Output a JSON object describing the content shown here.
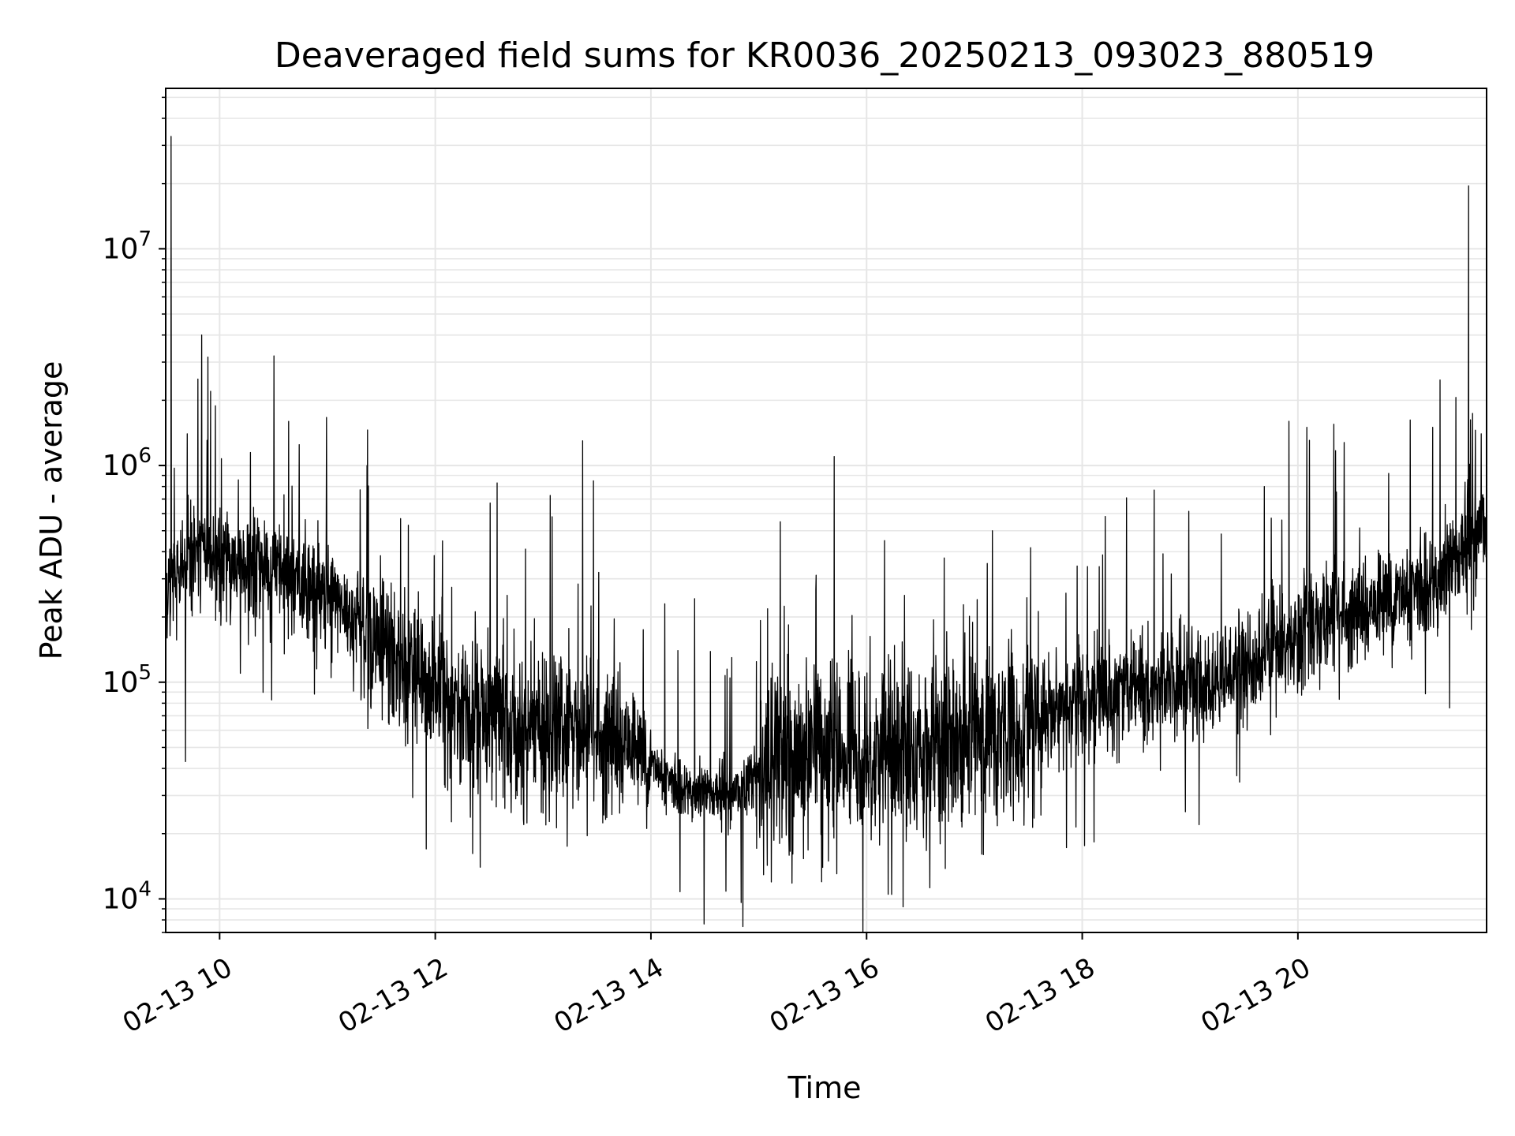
{
  "chart_data": {
    "type": "line",
    "title": "Deaveraged field sums for KR0036_20250213_093023_880519",
    "xlabel": "Time",
    "ylabel": "Peak ADU - average",
    "y_scale": "log",
    "ylim": [
      7000,
      55000000
    ],
    "xlim": [
      "2025-02-13 09:30",
      "2025-02-13 21:45"
    ],
    "grid": true,
    "legend": "none",
    "colors": {
      "line": "#000000",
      "grid": "#e6e6e6",
      "axes": "#000000"
    },
    "y_ticks": [
      {
        "value": 10000,
        "base": "10",
        "exp": "4"
      },
      {
        "value": 100000,
        "base": "10",
        "exp": "5"
      },
      {
        "value": 1000000,
        "base": "10",
        "exp": "6"
      },
      {
        "value": 10000000,
        "base": "10",
        "exp": "7"
      }
    ],
    "x_ticks": [
      {
        "value": "2025-02-13 10:00",
        "label": "02-13 10"
      },
      {
        "value": "2025-02-13 12:00",
        "label": "02-13 12"
      },
      {
        "value": "2025-02-13 14:00",
        "label": "02-13 14"
      },
      {
        "value": "2025-02-13 16:00",
        "label": "02-13 16"
      },
      {
        "value": "2025-02-13 18:00",
        "label": "02-13 18"
      },
      {
        "value": "2025-02-13 20:00",
        "label": "02-13 20"
      }
    ],
    "series": [
      {
        "x": [
          "2025-02-13 09:30",
          "2025-02-13 09:50",
          "2025-02-13 10:15",
          "2025-02-13 10:45",
          "2025-02-13 11:15",
          "2025-02-13 11:40",
          "2025-02-13 12:10",
          "2025-02-13 12:40",
          "2025-02-13 13:15",
          "2025-02-13 13:45",
          "2025-02-13 14:15",
          "2025-02-13 14:45",
          "2025-02-13 15:15",
          "2025-02-13 15:45",
          "2025-02-13 16:15",
          "2025-02-13 16:45",
          "2025-02-13 17:15",
          "2025-02-13 17:45",
          "2025-02-13 18:15",
          "2025-02-13 18:45",
          "2025-02-13 19:15",
          "2025-02-13 19:45",
          "2025-02-13 20:15",
          "2025-02-13 20:45",
          "2025-02-13 21:15",
          "2025-02-13 21:45"
        ],
        "y": [
          280000,
          400000,
          340000,
          300000,
          200000,
          120000,
          80000,
          65000,
          55000,
          55000,
          32000,
          30000,
          45000,
          50000,
          45000,
          55000,
          60000,
          75000,
          90000,
          100000,
          100000,
          140000,
          190000,
          230000,
          280000,
          550000
        ],
        "spikes": [
          {
            "x": "2025-02-13 09:33",
            "y": 33000000
          },
          {
            "x": "2025-02-13 09:50",
            "y": 4000000
          },
          {
            "x": "2025-02-13 09:55",
            "y": 2200000
          },
          {
            "x": "2025-02-13 09:42",
            "y": 1400000
          },
          {
            "x": "2025-02-13 11:22",
            "y": 1000000
          },
          {
            "x": "2025-02-13 11:45",
            "y": 530000
          },
          {
            "x": "2025-02-13 12:25",
            "y": 560000
          },
          {
            "x": "2025-02-13 13:05",
            "y": 580000
          },
          {
            "x": "2025-02-13 13:22",
            "y": 1300000
          },
          {
            "x": "2025-02-13 13:28",
            "y": 850000
          },
          {
            "x": "2025-02-13 14:15",
            "y": 140000
          },
          {
            "x": "2025-02-13 14:45",
            "y": 130000
          },
          {
            "x": "2025-02-13 15:12",
            "y": 550000
          },
          {
            "x": "2025-02-13 15:35",
            "y": 950000
          },
          {
            "x": "2025-02-13 15:42",
            "y": 1100000
          },
          {
            "x": "2025-02-13 16:10",
            "y": 450000
          },
          {
            "x": "2025-02-13 17:10",
            "y": 500000
          },
          {
            "x": "2025-02-13 18:40",
            "y": 770000
          },
          {
            "x": "2025-02-13 19:55",
            "y": 1600000
          },
          {
            "x": "2025-02-13 20:05",
            "y": 1500000
          },
          {
            "x": "2025-02-13 20:20",
            "y": 1550000
          },
          {
            "x": "2025-02-13 21:15",
            "y": 1500000
          },
          {
            "x": "2025-02-13 21:35",
            "y": 19500000
          },
          {
            "x": "2025-02-13 21:42",
            "y": 1400000
          }
        ],
        "dips": [
          {
            "x": "2025-02-13 09:41",
            "y": 43000
          },
          {
            "x": "2025-02-13 12:25",
            "y": 14000
          },
          {
            "x": "2025-02-13 11:55",
            "y": 17000
          },
          {
            "x": "2025-02-13 15:35",
            "y": 12000
          },
          {
            "x": "2025-02-13 16:12",
            "y": 10500
          },
          {
            "x": "2025-02-13 17:05",
            "y": 16000
          },
          {
            "x": "2025-02-13 19:05",
            "y": 22000
          }
        ]
      }
    ]
  }
}
